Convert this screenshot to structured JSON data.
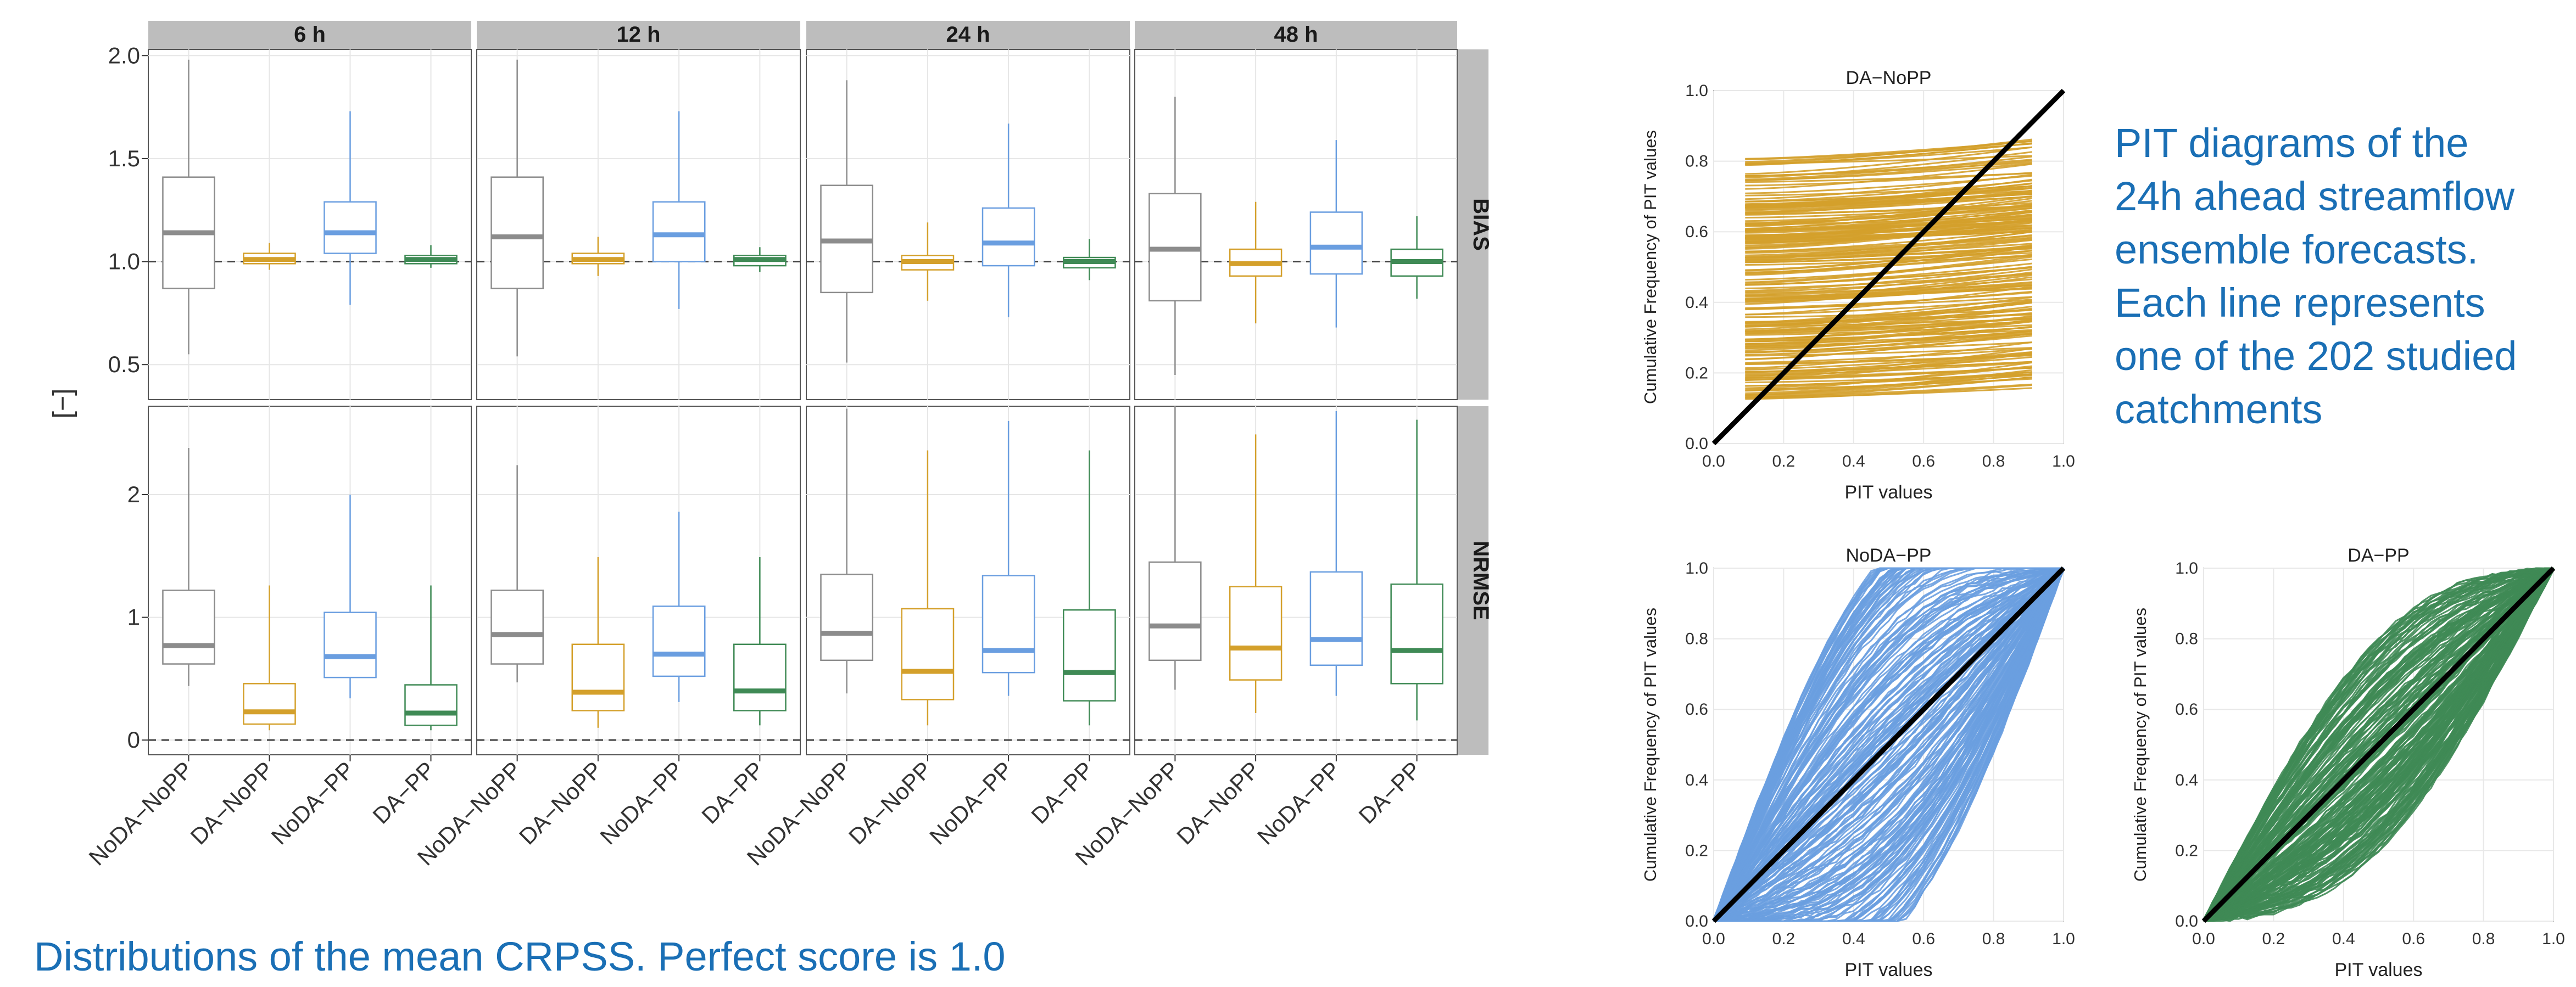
{
  "captions": {
    "left": "Distributions of the mean CRPSS. Perfect score is 1.0",
    "right_lines": [
      "PIT diagrams of the",
      "24h ahead streamflow",
      "ensemble forecasts.",
      "Each line represents",
      "one of the 202 studied",
      "catchments"
    ]
  },
  "colors": {
    "NoDA-NoPP": "#8c8c8c",
    "DA-NoPP": "#d4a02b",
    "NoDA-PP": "#6a9ee0",
    "DA-PP": "#3f8a55",
    "strip_bg": "#bdbdbd",
    "caption": "#1a6fb5"
  },
  "chart_data": [
    {
      "type": "boxplot",
      "ylabel": "[−]",
      "facet_columns": [
        "6 h",
        "12 h",
        "24 h",
        "48 h"
      ],
      "facet_rows": [
        "BIAS",
        "NRMSE"
      ],
      "categories": [
        "NoDA−NoPP",
        "DA−NoPP",
        "NoDA−PP",
        "DA−PP"
      ],
      "reference_lines": {
        "BIAS": 1.0,
        "NRMSE": 0.0
      },
      "rows": {
        "BIAS": {
          "ylim": [
            0.33,
            2.03
          ],
          "yticks": [
            "0.5",
            "1.0",
            "1.5",
            "2.0"
          ],
          "panels": {
            "6 h": [
              {
                "lw": 0.55,
                "q1": 0.87,
                "med": 1.14,
                "q3": 1.41,
                "uw": 1.98
              },
              {
                "lw": 0.96,
                "q1": 0.99,
                "med": 1.01,
                "q3": 1.04,
                "uw": 1.09
              },
              {
                "lw": 0.79,
                "q1": 1.04,
                "med": 1.14,
                "q3": 1.29,
                "uw": 1.73
              },
              {
                "lw": 0.97,
                "q1": 0.99,
                "med": 1.01,
                "q3": 1.03,
                "uw": 1.08
              }
            ],
            "12 h": [
              {
                "lw": 0.54,
                "q1": 0.87,
                "med": 1.12,
                "q3": 1.41,
                "uw": 1.98
              },
              {
                "lw": 0.93,
                "q1": 0.99,
                "med": 1.01,
                "q3": 1.04,
                "uw": 1.12
              },
              {
                "lw": 0.77,
                "q1": 1.0,
                "med": 1.13,
                "q3": 1.29,
                "uw": 1.73
              },
              {
                "lw": 0.95,
                "q1": 0.98,
                "med": 1.01,
                "q3": 1.03,
                "uw": 1.07
              }
            ],
            "24 h": [
              {
                "lw": 0.51,
                "q1": 0.85,
                "med": 1.1,
                "q3": 1.37,
                "uw": 1.88
              },
              {
                "lw": 0.81,
                "q1": 0.96,
                "med": 1.0,
                "q3": 1.03,
                "uw": 1.19
              },
              {
                "lw": 0.73,
                "q1": 0.98,
                "med": 1.09,
                "q3": 1.26,
                "uw": 1.67
              },
              {
                "lw": 0.91,
                "q1": 0.97,
                "med": 1.0,
                "q3": 1.02,
                "uw": 1.11
              }
            ],
            "48 h": [
              {
                "lw": 0.45,
                "q1": 0.81,
                "med": 1.06,
                "q3": 1.33,
                "uw": 1.8
              },
              {
                "lw": 0.7,
                "q1": 0.93,
                "med": 0.99,
                "q3": 1.06,
                "uw": 1.29
              },
              {
                "lw": 0.68,
                "q1": 0.94,
                "med": 1.07,
                "q3": 1.24,
                "uw": 1.59
              },
              {
                "lw": 0.82,
                "q1": 0.93,
                "med": 1.0,
                "q3": 1.06,
                "uw": 1.22
              }
            ]
          }
        },
        "NRMSE": {
          "ylim": [
            -0.12,
            2.72
          ],
          "yticks": [
            "0",
            "1",
            "2"
          ],
          "panels": {
            "6 h": [
              {
                "lw": 0.44,
                "q1": 0.62,
                "med": 0.77,
                "q3": 1.22,
                "uw": 2.38
              },
              {
                "lw": 0.08,
                "q1": 0.13,
                "med": 0.23,
                "q3": 0.46,
                "uw": 1.26
              },
              {
                "lw": 0.34,
                "q1": 0.51,
                "med": 0.68,
                "q3": 1.04,
                "uw": 2.0
              },
              {
                "lw": 0.08,
                "q1": 0.12,
                "med": 0.22,
                "q3": 0.45,
                "uw": 1.26
              }
            ],
            "12 h": [
              {
                "lw": 0.47,
                "q1": 0.62,
                "med": 0.86,
                "q3": 1.22,
                "uw": 2.24
              },
              {
                "lw": 0.1,
                "q1": 0.24,
                "med": 0.39,
                "q3": 0.78,
                "uw": 1.49
              },
              {
                "lw": 0.31,
                "q1": 0.52,
                "med": 0.7,
                "q3": 1.09,
                "uw": 1.86
              },
              {
                "lw": 0.12,
                "q1": 0.24,
                "med": 0.4,
                "q3": 0.78,
                "uw": 1.49
              }
            ],
            "24 h": [
              {
                "lw": 0.38,
                "q1": 0.65,
                "med": 0.87,
                "q3": 1.35,
                "uw": 2.7
              },
              {
                "lw": 0.12,
                "q1": 0.33,
                "med": 0.56,
                "q3": 1.07,
                "uw": 2.36
              },
              {
                "lw": 0.36,
                "q1": 0.55,
                "med": 0.73,
                "q3": 1.34,
                "uw": 2.6
              },
              {
                "lw": 0.12,
                "q1": 0.32,
                "med": 0.55,
                "q3": 1.06,
                "uw": 2.36
              }
            ],
            "48 h": [
              {
                "lw": 0.41,
                "q1": 0.65,
                "med": 0.93,
                "q3": 1.45,
                "uw": 2.72
              },
              {
                "lw": 0.22,
                "q1": 0.49,
                "med": 0.75,
                "q3": 1.25,
                "uw": 2.49
              },
              {
                "lw": 0.36,
                "q1": 0.61,
                "med": 0.82,
                "q3": 1.37,
                "uw": 2.68
              },
              {
                "lw": 0.16,
                "q1": 0.46,
                "med": 0.73,
                "q3": 1.27,
                "uw": 2.61
              }
            ]
          }
        }
      }
    },
    {
      "type": "line",
      "title": "DA−NoPP",
      "xlabel": "PIT values",
      "ylabel": "Cumulative Frequency of PIT values",
      "xlim": [
        0,
        1
      ],
      "ylim": [
        0,
        1
      ],
      "xticks": [
        "0.0",
        "0.2",
        "0.4",
        "0.6",
        "0.8",
        "1.0"
      ],
      "yticks": [
        "0.0",
        "0.2",
        "0.4",
        "0.6",
        "0.8",
        "1.0"
      ],
      "series_color": "DA-NoPP",
      "n_lines": 202,
      "line_x_range": [
        0.09,
        0.91
      ],
      "start_value_range": [
        0.12,
        0.81
      ],
      "end_rise_range": [
        0.02,
        0.08
      ],
      "reference_line": {
        "from": [
          0,
          0
        ],
        "to": [
          1,
          1
        ]
      }
    },
    {
      "type": "line",
      "title": "NoDA−PP",
      "xlabel": "PIT values",
      "ylabel": "Cumulative Frequency of PIT values",
      "xlim": [
        0,
        1
      ],
      "ylim": [
        0,
        1
      ],
      "xticks": [
        "0.0",
        "0.2",
        "0.4",
        "0.6",
        "0.8",
        "1.0"
      ],
      "yticks": [
        "0.0",
        "0.2",
        "0.4",
        "0.6",
        "0.8",
        "1.0"
      ],
      "series_color": "NoDA-PP",
      "n_lines": 202,
      "spread": 0.55,
      "reference_line": {
        "from": [
          0,
          0
        ],
        "to": [
          1,
          1
        ]
      }
    },
    {
      "type": "line",
      "title": "DA−PP",
      "xlabel": "PIT values",
      "ylabel": "Cumulative Frequency of PIT values",
      "xlim": [
        0,
        1
      ],
      "ylim": [
        0,
        1
      ],
      "xticks": [
        "0.0",
        "0.2",
        "0.4",
        "0.6",
        "0.8",
        "1.0"
      ],
      "yticks": [
        "0.0",
        "0.2",
        "0.4",
        "0.6",
        "0.8",
        "1.0"
      ],
      "series_color": "DA-PP",
      "n_lines": 202,
      "spread": 0.3,
      "reference_line": {
        "from": [
          0,
          0
        ],
        "to": [
          1,
          1
        ]
      }
    }
  ]
}
